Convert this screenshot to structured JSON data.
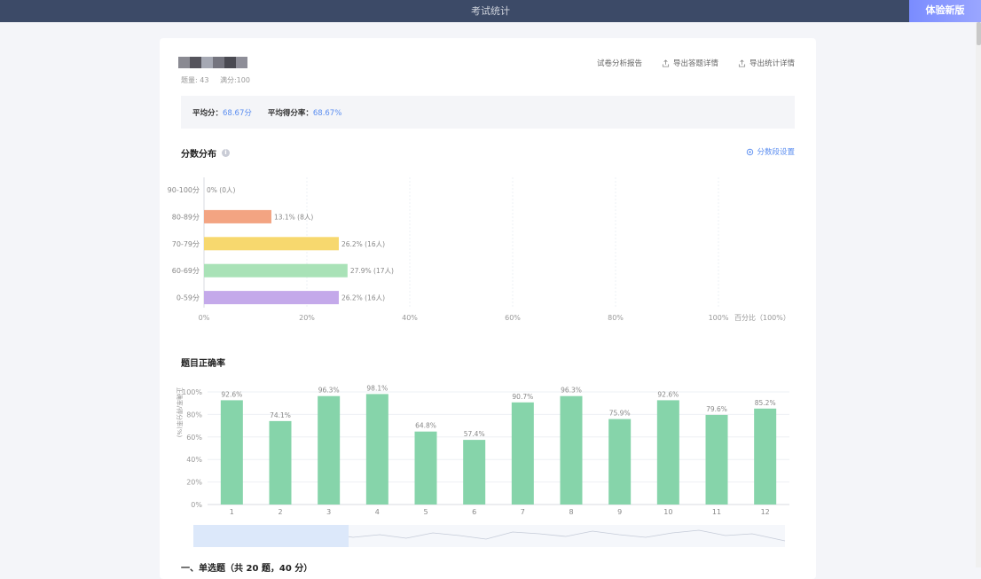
{
  "topbar": {
    "title": "考试统计",
    "new_version_button": "体验新版"
  },
  "exam": {
    "name_blocks": [
      "#8a8a92",
      "#55545c",
      "#a5a8b3",
      "#74747e",
      "#4a4a52",
      "#8e8e98"
    ],
    "question_count": "题量: 43",
    "full_score": "满分:100"
  },
  "actions": {
    "analysis_report": "试卷分析报告",
    "export_answers": "导出答题详情",
    "export_stats": "导出统计详情"
  },
  "summary": {
    "avg_score_label": "平均分：",
    "avg_score_value": "68.67分",
    "avg_rate_label": "平均得分率：",
    "avg_rate_value": "68.67%"
  },
  "score_distribution": {
    "title": "分数分布",
    "setting_label": "分数段设置"
  },
  "accuracy": {
    "title": "题目正确率"
  },
  "bottom_section": {
    "title": "一、单选题（共 20 题，40 分）"
  },
  "chart_data": [
    {
      "type": "bar",
      "orientation": "horizontal",
      "categories": [
        "90-100分",
        "80-89分",
        "70-79分",
        "60-69分",
        "0-59分"
      ],
      "values": [
        0,
        13.1,
        26.2,
        27.9,
        26.2
      ],
      "data_labels": [
        "0% (0人)",
        "13.1% (8人)",
        "26.2% (16人)",
        "27.9% (17人)",
        "26.2% (16人)"
      ],
      "colors": [
        "#f3a482",
        "#f3a482",
        "#f7d86e",
        "#a9e2b7",
        "#c4a9ea"
      ],
      "x_ticks": [
        "0%",
        "20%",
        "40%",
        "60%",
        "80%",
        "100%"
      ],
      "xlabel": "百分比（100%）",
      "xlim": [
        0,
        100
      ]
    },
    {
      "type": "bar",
      "categories": [
        "1",
        "2",
        "3",
        "4",
        "5",
        "6",
        "7",
        "8",
        "9",
        "10",
        "11",
        "12"
      ],
      "values": [
        92.6,
        74.1,
        96.3,
        98.1,
        64.8,
        57.4,
        90.7,
        96.3,
        75.9,
        92.6,
        79.6,
        85.2
      ],
      "data_labels": [
        "92.6%",
        "74.1%",
        "96.3%",
        "98.1%",
        "64.8%",
        "57.4%",
        "90.7%",
        "96.3%",
        "75.9%",
        "92.6%",
        "79.6%",
        "85.2%"
      ],
      "y_ticks": [
        "0%",
        "20%",
        "40%",
        "60%",
        "80%",
        "100%"
      ],
      "ylabel": "正确率/得分率(%)",
      "ylim": [
        0,
        100
      ],
      "color": "#86d4aa"
    }
  ]
}
